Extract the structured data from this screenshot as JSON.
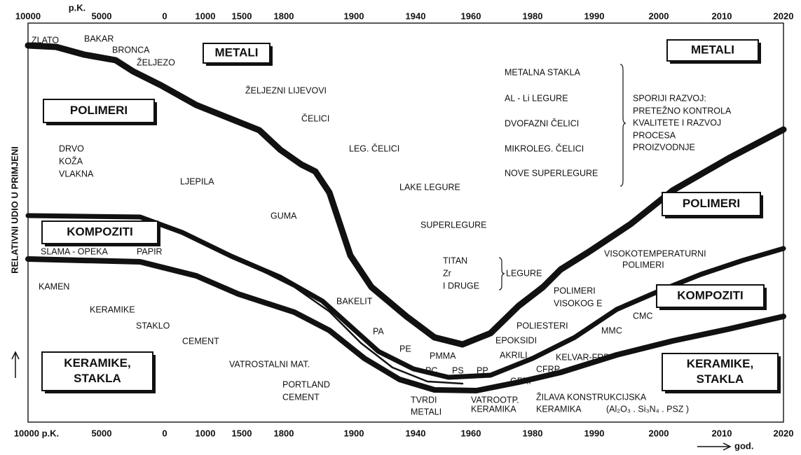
{
  "top_axis": [
    "10000",
    "p.K.",
    "5000",
    "0",
    "1000",
    "1500",
    "1800",
    "1900",
    "1940",
    "1960",
    "1980",
    "1990",
    "2000",
    "2010",
    "2020"
  ],
  "bottom_axis": [
    "10000 p.K.",
    "5000",
    "0",
    "1000",
    "1500",
    "1800",
    "1900",
    "1940",
    "1960",
    "1980",
    "1990",
    "2000",
    "2010",
    "2020"
  ],
  "y_axis_label": "RELATIVNI UDIO U PRIMJENI",
  "x_axis_label": "god.",
  "boxes": [
    {
      "lines": [
        "METALI"
      ]
    },
    {
      "lines": [
        "METALI"
      ]
    },
    {
      "lines": [
        "POLIMERI"
      ]
    },
    {
      "lines": [
        "POLIMERI"
      ]
    },
    {
      "lines": [
        "KOMPOZITI"
      ]
    },
    {
      "lines": [
        "KOMPOZITI"
      ]
    },
    {
      "lines": [
        "KERAMIKE,",
        "STAKLA"
      ]
    },
    {
      "lines": [
        "KERAMIKE,",
        "STAKLA"
      ]
    }
  ],
  "labels": [
    "ZLATO",
    "BAKAR",
    "BRONCA",
    "ŽELJEZO",
    "ŽELJEZNI LIJEVOVI",
    "ČELICI",
    "LEG. ČELICI",
    "LAKE LEGURE",
    "SUPERLEGURE",
    "DRVO",
    "KOŽA",
    "VLAKNA",
    "LJEPILA",
    "GUMA",
    "SLAMA - OPEKA",
    "PAPIR",
    "KAMEN",
    "KERAMIKE",
    "STAKLO",
    "CEMENT",
    "VATROSTALNI MAT.",
    "PORTLAND",
    "CEMENT",
    "BAKELIT",
    "PA",
    "PE",
    "PMMA",
    "PC",
    "PS",
    "PP",
    "TVRDI",
    "METALI",
    "VATROOTP.",
    "KERAMIKA",
    "AKRILI",
    "EPOKSIDI",
    "POLIESTERI",
    "GFRP",
    "CFRP",
    "KELVAR-FRP",
    "ŽILAVA KONSTRUKCIJSKA",
    "KERAMIKA",
    "(Al₂O₃ . Si₃N₄ . PSZ )",
    "TITAN",
    "Zr",
    "I DRUGE",
    "LEGURE",
    "POLIMERI",
    "VISOKOG E",
    "MMC",
    "CMC",
    "VISOKOTEMPERATURNI",
    "POLIMERI",
    "METALNA STAKLA",
    "AL - Li LEGURE",
    "DVOFAZNI ČELICI",
    "MIKROLEG. ČELICI",
    "NOVE SUPERLEGURE",
    "SPORIJI RAZVOJ:",
    "PRETEŽNO KONTROLA",
    "KVALITETE I RAZVOJ",
    "PROCESA",
    "PROIZVODNJE"
  ]
}
